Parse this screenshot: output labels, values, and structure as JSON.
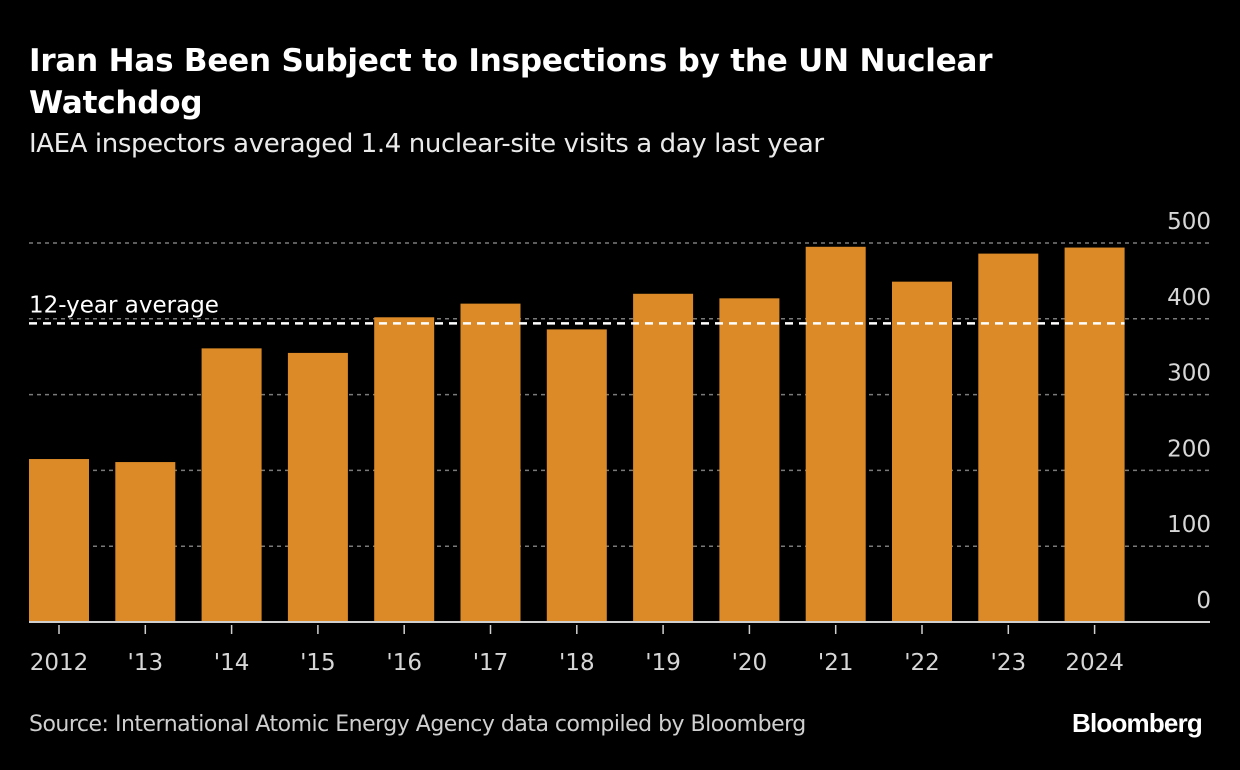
{
  "chart_data": {
    "type": "bar",
    "title": "Iran Has Been Subject to Inspections by the UN Nuclear Watchdog",
    "subtitle": "IAEA inspectors averaged 1.4 nuclear-site visits a day last year",
    "categories": [
      "2012",
      "'13",
      "'14",
      "'15",
      "'16",
      "'17",
      "'18",
      "'19",
      "'20",
      "'21",
      "'22",
      "'23",
      "2024"
    ],
    "values": [
      215,
      211,
      361,
      355,
      402,
      420,
      386,
      433,
      427,
      495,
      449,
      486,
      494
    ],
    "xlabel": "",
    "ylabel": "",
    "ylim": [
      0,
      500
    ],
    "yticks": [
      0,
      100,
      200,
      300,
      400,
      500
    ],
    "y_axis_position": "right",
    "grid": true,
    "bar_color": "#DB8A27",
    "reference_line": {
      "label": "12-year average",
      "value": 394,
      "color": "#FFFFFF",
      "style": "dashed"
    },
    "source": "Source: International Atomic Energy Agency data compiled by Bloomberg",
    "legend": null
  },
  "branding": {
    "logo_text": "Bloomberg"
  }
}
